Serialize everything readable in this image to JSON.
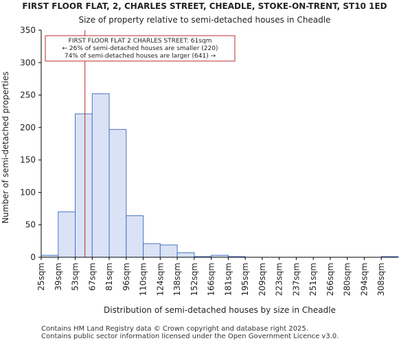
{
  "chart_data": {
    "type": "bar",
    "title": "FIRST FLOOR FLAT, 2, CHARLES STREET, CHEADLE, STOKE-ON-TRENT, ST10 1ED",
    "subtitle": "Size of property relative to semi-detached houses in Cheadle",
    "xlabel": "Distribution of semi-detached houses by size in Cheadle",
    "ylabel": "Number of semi-detached properties",
    "ylim": [
      0,
      350
    ],
    "yticks": [
      0,
      50,
      100,
      150,
      200,
      250,
      300,
      350
    ],
    "categories": [
      "25sqm",
      "39sqm",
      "53sqm",
      "67sqm",
      "81sqm",
      "96sqm",
      "110sqm",
      "124sqm",
      "138sqm",
      "152sqm",
      "166sqm",
      "181sqm",
      "195sqm",
      "209sqm",
      "223sqm",
      "237sqm",
      "251sqm",
      "266sqm",
      "280sqm",
      "294sqm",
      "308sqm"
    ],
    "values": [
      3,
      70,
      221,
      252,
      197,
      64,
      21,
      19,
      7,
      1,
      3,
      1,
      0,
      0,
      0,
      0,
      0,
      0,
      0,
      0,
      1
    ],
    "marker_value_sqm": 61,
    "annotation": {
      "line1": "FIRST FLOOR FLAT 2 CHARLES STREET: 61sqm",
      "line2": "← 26% of semi-detached houses are smaller (220)",
      "line3": "74% of semi-detached houses are larger (641) →"
    },
    "colors": {
      "bar_fill": "#dae3f5",
      "bar_stroke": "#4a72c6",
      "marker": "#c0282d",
      "axis": "#000000"
    }
  },
  "footer": {
    "line1": "Contains HM Land Registry data © Crown copyright and database right 2025.",
    "line2": "Contains public sector information licensed under the Open Government Licence v3.0."
  }
}
